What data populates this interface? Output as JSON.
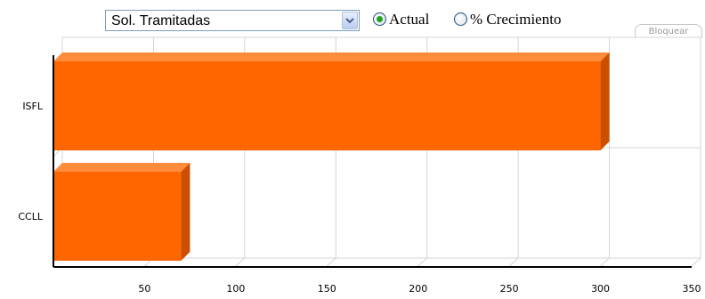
{
  "controls": {
    "metric_select": {
      "selected": "Sol. Tramitadas"
    },
    "radio_actual": {
      "label": "Actual",
      "checked": true
    },
    "radio_growth": {
      "label": "% Crecimiento",
      "checked": false
    },
    "lock_button": {
      "label": "Bloquear"
    }
  },
  "colors": {
    "bar": "#ff6600",
    "bar_top": "#ff8c3a",
    "bar_side": "#cc4f00",
    "axis": "#000000",
    "grid": "#d4d4d4"
  },
  "chart_data": {
    "type": "bar",
    "orientation": "horizontal",
    "categories": [
      "ISFL",
      "CCLL"
    ],
    "values": [
      300,
      70
    ],
    "xlim": [
      0,
      350
    ],
    "xticks": [
      50,
      100,
      150,
      200,
      250,
      300,
      350
    ],
    "grid": true,
    "legend": "none",
    "title": "",
    "xlabel": "",
    "ylabel": ""
  }
}
